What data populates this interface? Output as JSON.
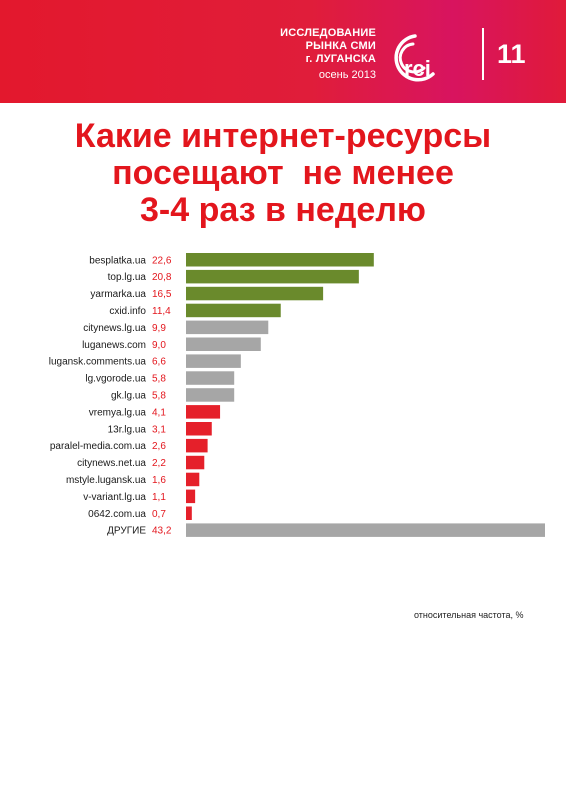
{
  "header": {
    "lines": [
      "ИССЛЕДОВАНИЕ",
      "РЫНКА СМИ",
      "г. ЛУГАНСКА"
    ],
    "season": "осень 2013",
    "logo_text": "rci",
    "page_number": "11"
  },
  "title_lines": [
    "Какие интернет-ресурсы",
    "посещают  не менее",
    "3-4 раз в неделю"
  ],
  "footnote": "относительная частота, %",
  "colors": {
    "header_red": "#e3182d",
    "title_red": "#e3161d",
    "value_red": "#e3161d",
    "bar_green": "#6a8a2c",
    "bar_gray": "#a6a6a6",
    "bar_red": "#e5202a"
  },
  "chart_data": {
    "type": "bar",
    "orientation": "horizontal",
    "value_axis_unit": "относительная частота, %",
    "categories": [
      "besplatka.ua",
      "top.lg.ua",
      "yarmarka.ua",
      "cxid.info",
      "citynews.lg.ua",
      "luganews.com",
      "lugansk.comments.ua",
      "lg.vgorode.ua",
      "gk.lg.ua",
      "vremya.lg.ua",
      "13r.lg.ua",
      "paralel-media.com.ua",
      "citynews.net.ua",
      "mstyle.lugansk.ua",
      "v-variant.lg.ua",
      "0642.com.ua",
      "ДРУГИЕ"
    ],
    "values": [
      22.6,
      20.8,
      16.5,
      11.4,
      9.9,
      9.0,
      6.6,
      5.8,
      5.8,
      4.1,
      3.1,
      2.6,
      2.2,
      1.6,
      1.1,
      0.7,
      43.2
    ],
    "value_labels": [
      "22,6",
      "20,8",
      "16,5",
      "11,4",
      "9,9",
      "9,0",
      "6,6",
      "5,8",
      "5,8",
      "4,1",
      "3,1",
      "2,6",
      "2,2",
      "1,6",
      "1,1",
      "0,7",
      "43,2"
    ],
    "bar_colors": [
      "#6a8a2c",
      "#6a8a2c",
      "#6a8a2c",
      "#6a8a2c",
      "#a6a6a6",
      "#a6a6a6",
      "#a6a6a6",
      "#a6a6a6",
      "#a6a6a6",
      "#e5202a",
      "#e5202a",
      "#e5202a",
      "#e5202a",
      "#e5202a",
      "#e5202a",
      "#e5202a",
      "#a6a6a6"
    ],
    "xlim": [
      0,
      43.2
    ],
    "grid": false,
    "legend": "none"
  }
}
